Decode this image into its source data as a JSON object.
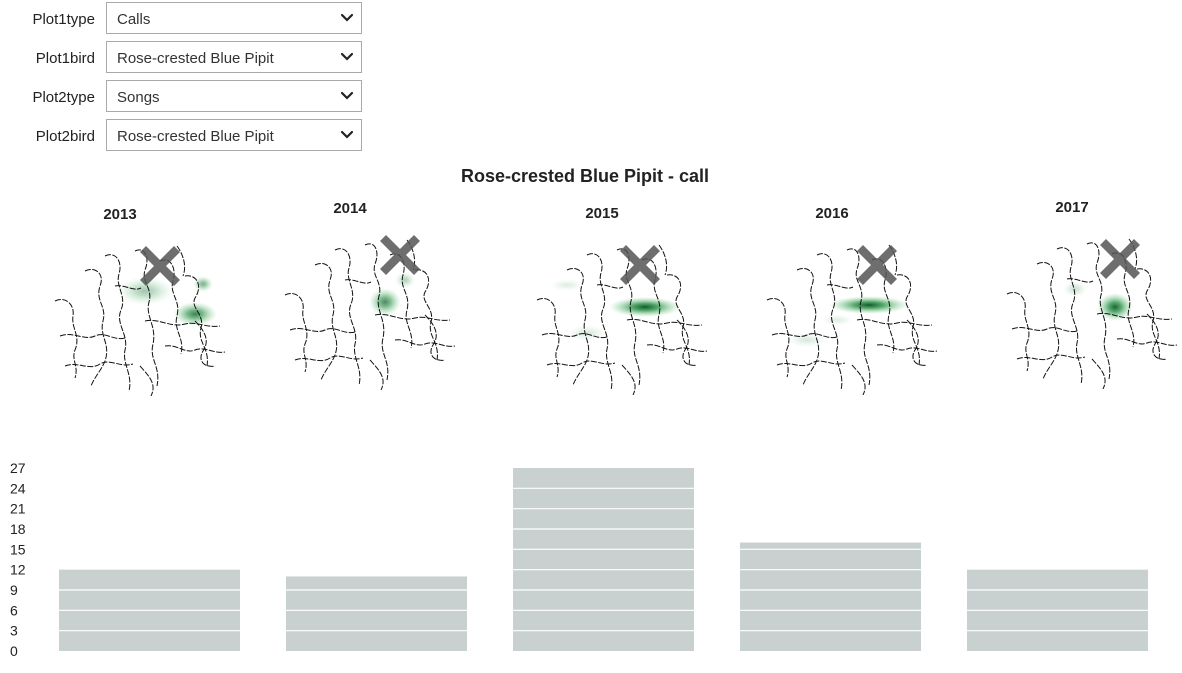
{
  "controls": [
    {
      "label": "Plot1type",
      "value": "Calls"
    },
    {
      "label": "Plot1bird",
      "value": "Rose-crested Blue Pipit"
    },
    {
      "label": "Plot2type",
      "value": "Songs"
    },
    {
      "label": "Plot2bird",
      "value": "Rose-crested Blue Pipit"
    }
  ],
  "icons": {
    "dropdown": "chevron-down-icon",
    "marker": "cross-marker-icon"
  },
  "colors": {
    "bar": "#c8d0d0",
    "density": "#1a8a3a",
    "marker": "#555555"
  },
  "map_title": "Rose-crested Blue Pipit - call",
  "maps": [
    {
      "year": "2013"
    },
    {
      "year": "2014"
    },
    {
      "year": "2015"
    },
    {
      "year": "2016"
    },
    {
      "year": "2017"
    }
  ],
  "chart_data": {
    "type": "bar",
    "title": "",
    "categories": [
      "2013",
      "2014",
      "2015",
      "2016",
      "2017"
    ],
    "show_category_labels": false,
    "values": [
      12,
      11,
      27,
      16,
      12
    ],
    "xlabel": "",
    "ylabel": "",
    "ylim": [
      0,
      27
    ],
    "yticks": [
      0,
      3,
      6,
      9,
      12,
      15,
      18,
      21,
      24,
      27
    ],
    "grid": "white lines inside bars"
  }
}
